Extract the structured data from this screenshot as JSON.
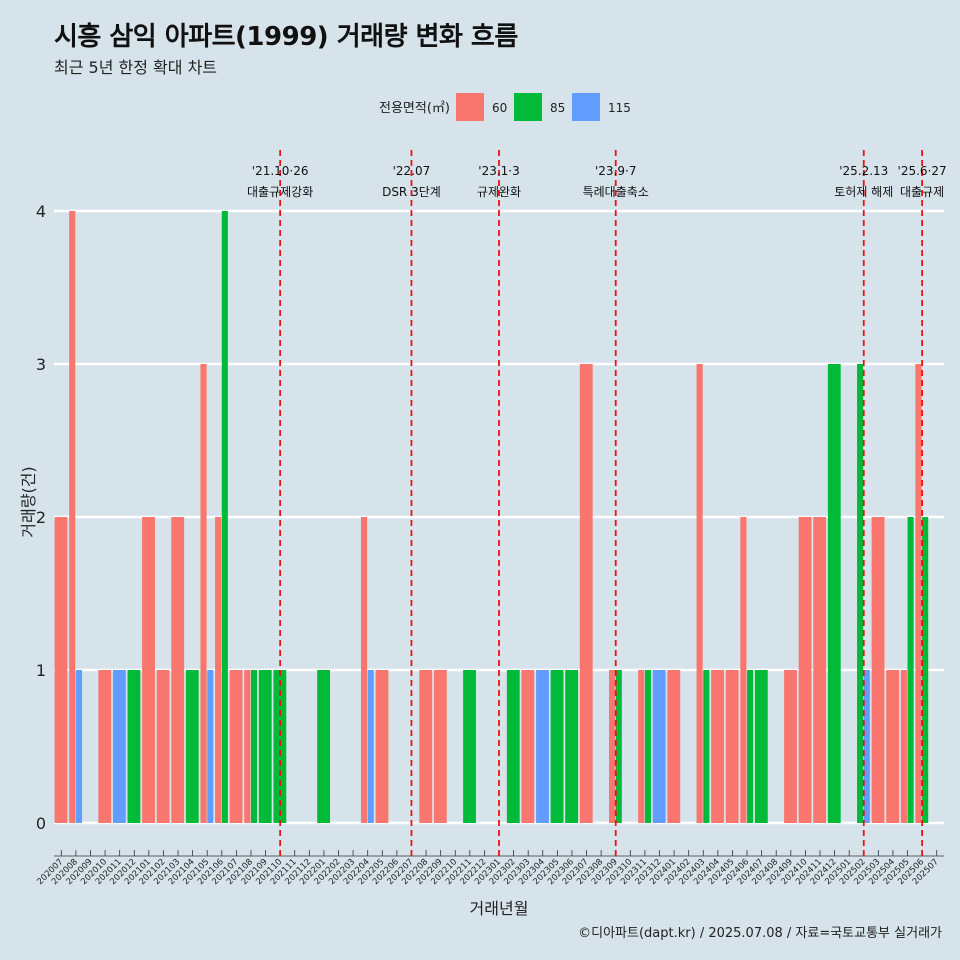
{
  "title": "시흥 삼익 아파트(1999) 거래량 변화 흐름",
  "subtitle": "최근 5년 한정 확대 차트",
  "caption": "©디아파트(dapt.kr) / 2025.07.08 / 자료=국토교통부 실거래가",
  "colors": {
    "background": "#d6e3ea",
    "s60": "#f8766d",
    "s85": "#00ba38",
    "s115": "#619cff",
    "vline": "#ee1111",
    "grid": "#ffffff"
  },
  "chart_data": {
    "type": "bar",
    "title": "시흥 삼익 아파트(1999) 거래량 변화 흐름",
    "subtitle": "최근 5년 한정 확대 차트",
    "xlabel": "거래년월",
    "ylabel": "거래량(건)",
    "ylim": [
      0,
      4
    ],
    "yticks": [
      0,
      1,
      2,
      3,
      4
    ],
    "legend": {
      "title": "전용면적(㎡)",
      "position": "top",
      "entries": [
        "60",
        "85",
        "115"
      ]
    },
    "categories": [
      "202007",
      "202008",
      "202009",
      "202010",
      "202011",
      "202012",
      "202101",
      "202102",
      "202103",
      "202104",
      "202105",
      "202106",
      "202107",
      "202108",
      "202109",
      "202110",
      "202111",
      "202112",
      "202201",
      "202202",
      "202203",
      "202204",
      "202205",
      "202206",
      "202207",
      "202208",
      "202209",
      "202210",
      "202211",
      "202212",
      "202301",
      "202302",
      "202303",
      "202304",
      "202305",
      "202306",
      "202307",
      "202308",
      "202309",
      "202310",
      "202311",
      "202312",
      "202401",
      "202402",
      "202403",
      "202404",
      "202405",
      "202406",
      "202407",
      "202408",
      "202409",
      "202410",
      "202411",
      "202412",
      "202501",
      "202502",
      "202503",
      "202504",
      "202505",
      "202506",
      "202507"
    ],
    "series": [
      {
        "name": "60",
        "values": [
          2,
          4,
          0,
          1,
          0,
          0,
          2,
          1,
          2,
          0,
          3,
          2,
          1,
          1,
          0,
          0,
          0,
          0,
          0,
          0,
          0,
          2,
          1,
          0,
          0,
          1,
          1,
          0,
          0,
          0,
          0,
          0,
          1,
          0,
          0,
          0,
          3,
          0,
          1,
          0,
          1,
          0,
          1,
          0,
          3,
          1,
          1,
          2,
          0,
          0,
          1,
          2,
          2,
          0,
          0,
          0,
          2,
          1,
          1,
          3,
          0
        ]
      },
      {
        "name": "85",
        "values": [
          0,
          0,
          0,
          0,
          0,
          1,
          0,
          0,
          0,
          1,
          0,
          4,
          0,
          1,
          1,
          1,
          0,
          0,
          1,
          0,
          0,
          0,
          0,
          0,
          0,
          0,
          0,
          0,
          1,
          0,
          0,
          1,
          0,
          0,
          1,
          1,
          0,
          0,
          1,
          0,
          1,
          0,
          0,
          0,
          1,
          0,
          0,
          1,
          1,
          0,
          0,
          0,
          0,
          3,
          0,
          3,
          0,
          0,
          2,
          2,
          0
        ]
      },
      {
        "name": "115",
        "values": [
          0,
          1,
          0,
          0,
          1,
          0,
          0,
          0,
          0,
          0,
          1,
          0,
          0,
          0,
          0,
          0,
          0,
          0,
          0,
          0,
          0,
          1,
          0,
          0,
          0,
          0,
          0,
          0,
          0,
          0,
          0,
          0,
          0,
          1,
          0,
          0,
          0,
          0,
          0,
          0,
          0,
          1,
          0,
          0,
          0,
          0,
          0,
          0,
          0,
          0,
          0,
          0,
          0,
          0,
          0,
          1,
          0,
          0,
          0,
          0,
          0
        ]
      }
    ],
    "annotations": [
      {
        "x": "202110",
        "date": "'21.10·26",
        "label": "대출규제강화"
      },
      {
        "x": "202207",
        "date": "'22.07",
        "label": "DSR 3단계"
      },
      {
        "x": "202301",
        "date": "'23.1·3",
        "label": "규제완화"
      },
      {
        "x": "202309",
        "date": "'23.9·7",
        "label": "특례대출축소"
      },
      {
        "x": "202502",
        "date": "'25.2.13",
        "label": "토허제 해제"
      },
      {
        "x": "202506",
        "date": "'25.6·27",
        "label": "대출규제"
      }
    ]
  }
}
